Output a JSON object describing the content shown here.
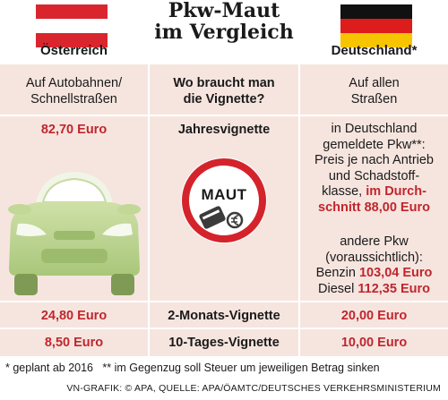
{
  "title_line1": "Pkw-Maut",
  "title_line2": "im Vergleich",
  "at": {
    "name": "Österreich",
    "where": [
      "Auf Autobahnen/",
      "Schnellstraßen"
    ],
    "year": "82,70 Euro",
    "twomonth": "24,80 Euro",
    "tenday": "8,50 Euro"
  },
  "de": {
    "name": "Deutschland*",
    "where": [
      "Auf allen",
      "Straßen"
    ],
    "year_lines": [
      "in Deutschland",
      "gemeldete Pkw**:",
      "Preis je nach Antrieb",
      "und Schadstoff-"
    ],
    "year_klasse": "klasse, ",
    "year_durch": "im Durch-",
    "year_schnitt": "schnitt 88,00 Euro",
    "other_lines": [
      "andere Pkw",
      "(voraussichtlich):"
    ],
    "benzin_label": "Benzin ",
    "benzin_value": "103,04 Euro",
    "diesel_label": "Diesel ",
    "diesel_value": "112,35 Euro",
    "twomonth": "20,00 Euro",
    "tenday": "10,00 Euro"
  },
  "middle": {
    "question": [
      "Wo braucht man",
      "die Vignette?"
    ],
    "year": "Jahresvignette",
    "sign": "MAUT",
    "twomonth": "2-Monats-Vignette",
    "tenday": "10-Tages-Vignette"
  },
  "footnote": "* geplant ab 2016   ** im Gegenzug soll Steuer um jeweiligen Betrag sinken",
  "credit": "VN-GRAFIK: © APA, QUELLE: APA/ÖAMTC/DEUTSCHES VERKEHRSMINISTERIUM",
  "colors": {
    "accent_red": "#c0262d",
    "row_bg": "#f6e5df",
    "car_green": "#b5cf8a"
  }
}
